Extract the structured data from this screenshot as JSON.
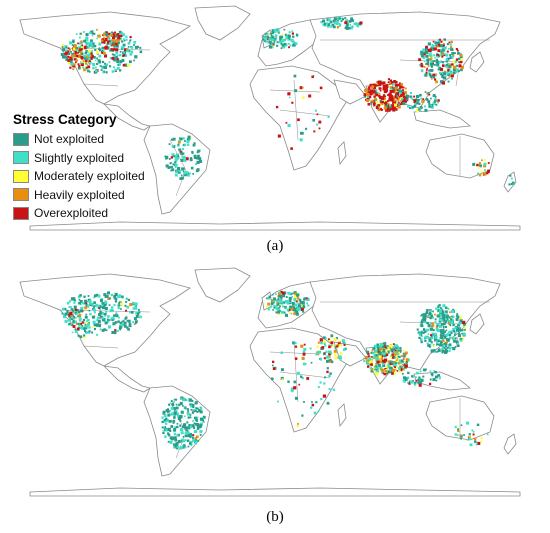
{
  "legend": {
    "title": "Stress Category",
    "items": [
      {
        "label": "Not exploited",
        "color": "#2a9d8a"
      },
      {
        "label": "Slightly exploited",
        "color": "#40e0c8"
      },
      {
        "label": "Moderately exploited",
        "color": "#ffff33"
      },
      {
        "label": "Heavily exploited",
        "color": "#e8900c"
      },
      {
        "label": "Overexploited",
        "color": "#c81414"
      }
    ]
  },
  "captions": {
    "a": "(a)",
    "b": "(b)"
  },
  "map_style": {
    "land_fill": "#ffffff",
    "border_color": "#8a8a8a"
  }
}
